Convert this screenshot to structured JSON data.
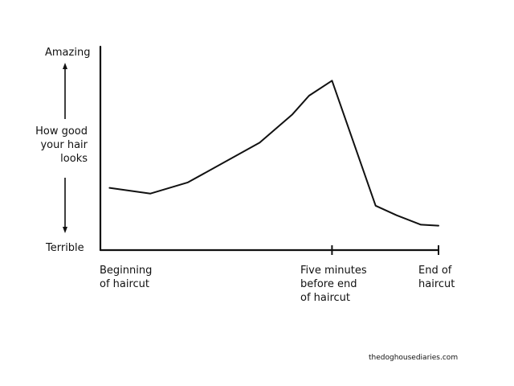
{
  "chart_data": {
    "type": "line",
    "x_axis": {
      "tick_labels": [
        {
          "text": "Beginning\nof haircut",
          "x": 0
        },
        {
          "text": "Five minutes\nbefore end\nof haircut",
          "x": 0.685
        },
        {
          "text": "End of\nhaircut",
          "x": 1
        }
      ],
      "range": [
        0,
        1
      ]
    },
    "y_axis": {
      "top_label": "Amazing",
      "middle_label": "How good\nyour hair\nlooks",
      "bottom_label": "Terrible",
      "range": [
        0,
        1
      ]
    },
    "series": [
      {
        "x": [
          0.027,
          0.148,
          0.259,
          0.471,
          0.568,
          0.617,
          0.685,
          0.814,
          0.876,
          0.948,
          1.0
        ],
        "y": [
          0.306,
          0.278,
          0.333,
          0.528,
          0.667,
          0.759,
          0.833,
          0.218,
          0.171,
          0.125,
          0.12
        ]
      }
    ],
    "grid": false,
    "legend": "none"
  },
  "credit": "thedoghousediaries.com",
  "colors": {
    "ink": "#111111",
    "background": "#ffffff"
  }
}
